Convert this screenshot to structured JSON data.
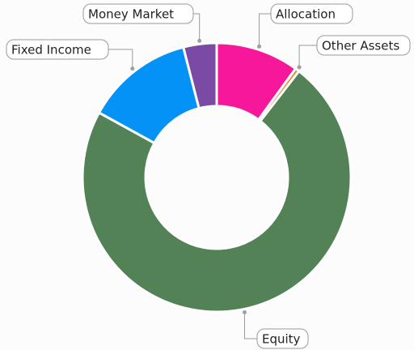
{
  "chart_data": {
    "type": "pie",
    "donut": true,
    "categories": [
      "Allocation",
      "Other Assets",
      "Equity",
      "Fixed Income",
      "Money Market"
    ],
    "values": [
      10,
      0.5,
      72.5,
      13,
      4
    ],
    "colors": [
      "#f7179b",
      "#e08a2c",
      "#548257",
      "#0592f7",
      "#7a4aa5"
    ]
  }
}
